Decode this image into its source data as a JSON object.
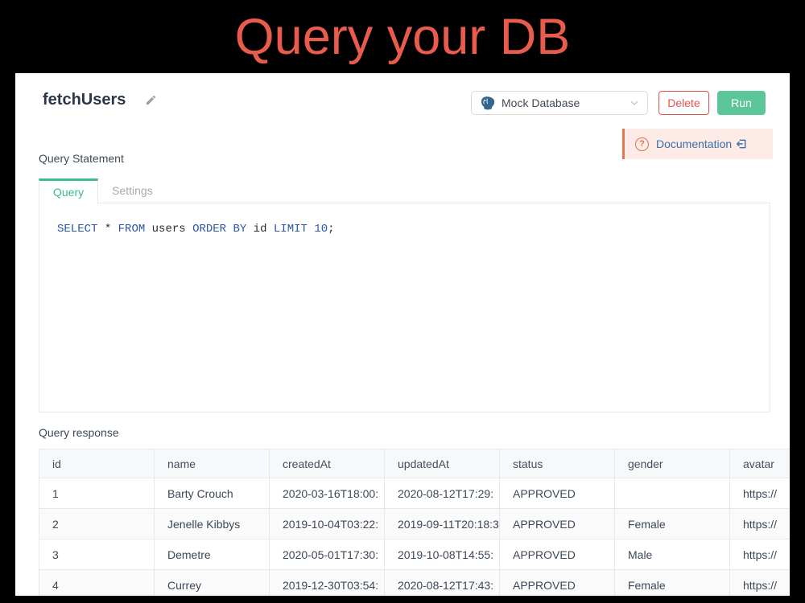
{
  "page": {
    "title": "Query your DB"
  },
  "header": {
    "query_name": "fetchUsers",
    "resource_select": {
      "value": "Mock Database",
      "icon": "postgresql-icon"
    },
    "delete_label": "Delete",
    "run_label": "Run"
  },
  "doc_banner": {
    "question_glyph": "?",
    "label": "Documentation"
  },
  "editor": {
    "section_label": "Query Statement",
    "tabs": [
      {
        "label": "Query",
        "active": true
      },
      {
        "label": "Settings",
        "active": false
      }
    ],
    "sql_tokens": [
      {
        "text": "SELECT",
        "type": "keyword"
      },
      {
        "text": " * ",
        "type": "plain"
      },
      {
        "text": "FROM",
        "type": "keyword"
      },
      {
        "text": " users ",
        "type": "plain"
      },
      {
        "text": "ORDER BY",
        "type": "keyword"
      },
      {
        "text": " id ",
        "type": "plain"
      },
      {
        "text": "LIMIT",
        "type": "keyword"
      },
      {
        "text": " ",
        "type": "plain"
      },
      {
        "text": "10",
        "type": "number"
      },
      {
        "text": ";",
        "type": "plain"
      }
    ]
  },
  "response": {
    "section_label": "Query response",
    "table": {
      "columns": [
        "id",
        "name",
        "createdAt",
        "updatedAt",
        "status",
        "gender",
        "avatar"
      ],
      "rows": [
        [
          "1",
          "Barty Crouch",
          "2020-03-16T18:00:",
          "2020-08-12T17:29:",
          "APPROVED",
          "",
          "https://"
        ],
        [
          "2",
          "Jenelle Kibbys",
          "2019-10-04T03:22:",
          "2019-09-11T20:18:3",
          "APPROVED",
          "Female",
          "https://"
        ],
        [
          "3",
          "Demetre",
          "2020-05-01T17:30:",
          "2019-10-08T14:55:",
          "APPROVED",
          "Male",
          "https://"
        ],
        [
          "4",
          "Currey",
          "2019-12-30T03:54:",
          "2020-08-12T17:43:",
          "APPROVED",
          "Female",
          "https://"
        ]
      ]
    }
  },
  "colors": {
    "title_red": "#e85b4d",
    "run_green": "#5cc698",
    "delete_red": "#e0564e",
    "tab_green": "#3db98a",
    "doc_banner_bg": "#fcebe6",
    "doc_accent_orange": "#e2794f",
    "doc_link_blue": "#3a6fa8",
    "sql_keyword_blue": "#2a56a5",
    "postgres_blue": "#336791"
  }
}
